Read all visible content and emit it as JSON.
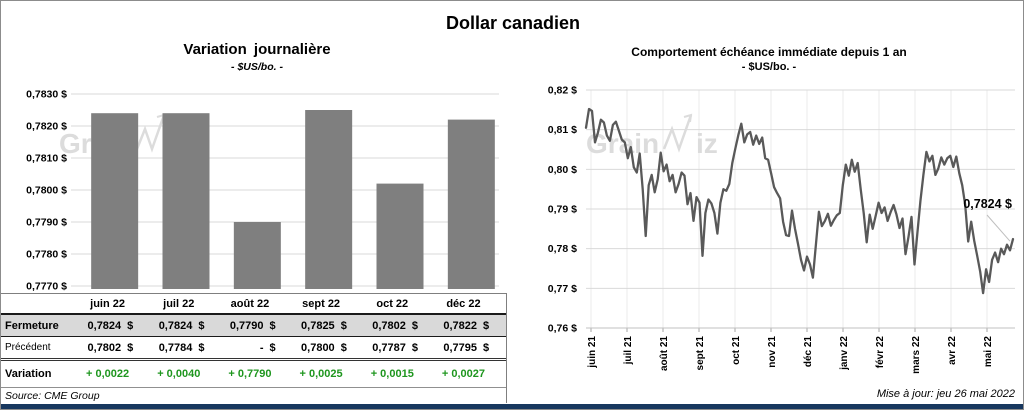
{
  "page": {
    "title": "Dollar canadien",
    "source": "Source: CME Group",
    "updated": "Mise à jour: jeu 26 mai 2022",
    "watermark": "GrainWiz",
    "footer_bar_color": "#17375E"
  },
  "chart_data": [
    {
      "type": "bar",
      "title": "Variation  journalière",
      "subtitle": "- $US/bo. -",
      "categories": [
        "juin 22",
        "juil 22",
        "août 22",
        "sept 22",
        "oct 22",
        "déc 22"
      ],
      "values": [
        0.7824,
        0.7824,
        0.779,
        0.7825,
        0.7802,
        0.7822
      ],
      "ylim": [
        0.777,
        0.783
      ],
      "ytick_labels": [
        "0,7830 $",
        "0,7820 $",
        "0,7810 $",
        "0,7800 $",
        "0,7790 $",
        "0,7780 $",
        "0,7770 $"
      ],
      "grid": true,
      "bar_color": "#7F7F7F",
      "grid_color": "#d9d9d9"
    },
    {
      "type": "line",
      "title": "Comportement échéance immédiate depuis 1 an",
      "subtitle": "- $US/bo. -",
      "x_labels": [
        "juin 21",
        "juil 21",
        "août 21",
        "sept 21",
        "oct 21",
        "nov 21",
        "déc 21",
        "janv 22",
        "févr 22",
        "mars 22",
        "avr 22",
        "mai 22"
      ],
      "ylim": [
        0.76,
        0.82
      ],
      "ytick_labels": [
        "0,82 $",
        "0,81 $",
        "0,80 $",
        "0,79 $",
        "0,78 $",
        "0,77 $",
        "0,76 $"
      ],
      "grid": true,
      "line_color": "#595959",
      "grid_color": "#d9d9d9",
      "annotation": {
        "text": "0,7824 $",
        "value": 0.7824
      },
      "values": [
        0.8105,
        0.8152,
        0.8147,
        0.8068,
        0.8092,
        0.8125,
        0.8118,
        0.8085,
        0.8072,
        0.8112,
        0.812,
        0.8098,
        0.8075,
        0.8068,
        0.8028,
        0.8056,
        0.8005,
        0.7992,
        0.804,
        0.795,
        0.7832,
        0.796,
        0.7986,
        0.7942,
        0.7975,
        0.8042,
        0.7995,
        0.8012,
        0.797,
        0.7986,
        0.7942,
        0.7963,
        0.7992,
        0.7984,
        0.7912,
        0.794,
        0.787,
        0.793,
        0.7916,
        0.7782,
        0.789,
        0.7924,
        0.7914,
        0.789,
        0.7838,
        0.7916,
        0.795,
        0.7946,
        0.7963,
        0.8016,
        0.8052,
        0.8086,
        0.8115,
        0.8068,
        0.8088,
        0.8094,
        0.8062,
        0.8085,
        0.8064,
        0.808,
        0.8028,
        0.8024,
        0.799,
        0.7955,
        0.794,
        0.7927,
        0.7868,
        0.7834,
        0.7832,
        0.7896,
        0.785,
        0.7812,
        0.7772,
        0.7745,
        0.778,
        0.776,
        0.7727,
        0.781,
        0.7893,
        0.7857,
        0.787,
        0.7888,
        0.7858,
        0.7872,
        0.7884,
        0.789,
        0.796,
        0.8012,
        0.7984,
        0.8024,
        0.7994,
        0.8016,
        0.795,
        0.789,
        0.7816,
        0.7886,
        0.785,
        0.7882,
        0.7916,
        0.789,
        0.7904,
        0.787,
        0.7892,
        0.791,
        0.7886,
        0.7852,
        0.7876,
        0.7786,
        0.783,
        0.788,
        0.776,
        0.784,
        0.792,
        0.7986,
        0.8044,
        0.802,
        0.8034,
        0.7986,
        0.8002,
        0.803,
        0.8012,
        0.8028,
        0.8034,
        0.8006,
        0.8032,
        0.799,
        0.796,
        0.791,
        0.7818,
        0.7868,
        0.782,
        0.7782,
        0.7742,
        0.7688,
        0.7748,
        0.7716,
        0.7772,
        0.779,
        0.7766,
        0.78,
        0.7786,
        0.781,
        0.7796,
        0.7824
      ]
    }
  ],
  "table": {
    "columns": [
      "juin 22",
      "juil 22",
      "août 22",
      "sept 22",
      "oct 22",
      "déc 22"
    ],
    "currency": "$",
    "variation_color": "#1E961E",
    "shaded_row_color": "#D9D9D9",
    "rows": [
      {
        "label": "Fermeture",
        "values": [
          "0,7824",
          "0,7824",
          "0,7790",
          "0,7825",
          "0,7802",
          "0,7822"
        ],
        "with_currency": true,
        "shaded": true
      },
      {
        "label": "Précédent",
        "values": [
          "0,7802",
          "0,7784",
          "-",
          "0,7800",
          "0,7787",
          "0,7795"
        ],
        "with_currency": true,
        "shaded": false
      },
      {
        "label": "Variation",
        "values": [
          "+ 0,0022",
          "+ 0,0040",
          "+ 0,7790",
          "+ 0,0025",
          "+ 0,0015",
          "+ 0,0027"
        ],
        "with_currency": false,
        "shaded": false,
        "green": true
      }
    ]
  }
}
